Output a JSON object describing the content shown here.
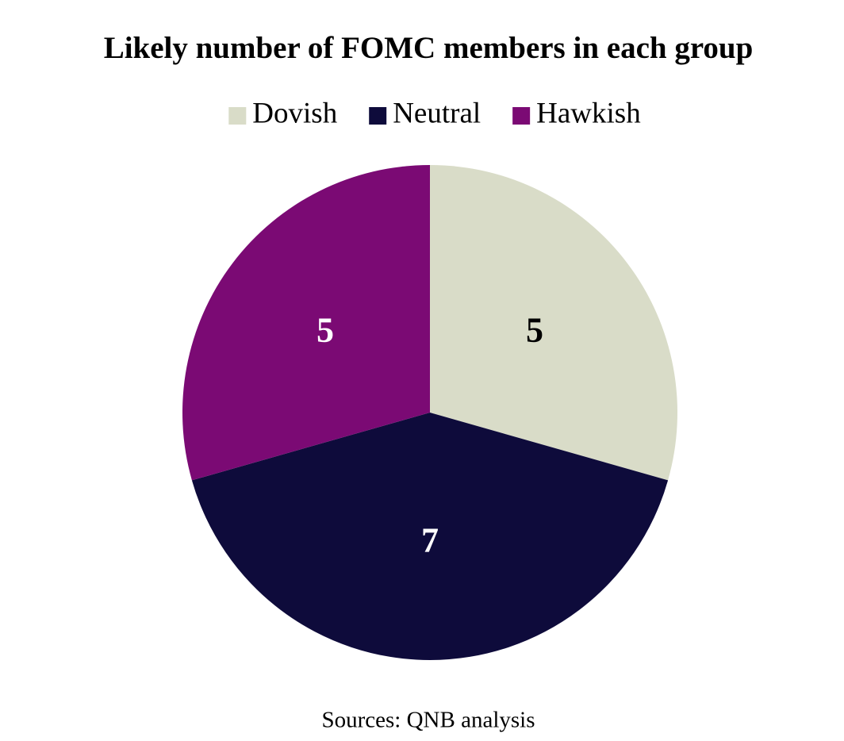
{
  "chart_data": {
    "type": "pie",
    "title": "Likely number of FOMC members in each group",
    "categories": [
      "Dovish",
      "Neutral",
      "Hawkish"
    ],
    "values": [
      5,
      7,
      5
    ],
    "colors": [
      "#d9dcc8",
      "#0e0b3b",
      "#7b0a74"
    ],
    "legend": "top",
    "note": "Sources: QNB analysis"
  }
}
